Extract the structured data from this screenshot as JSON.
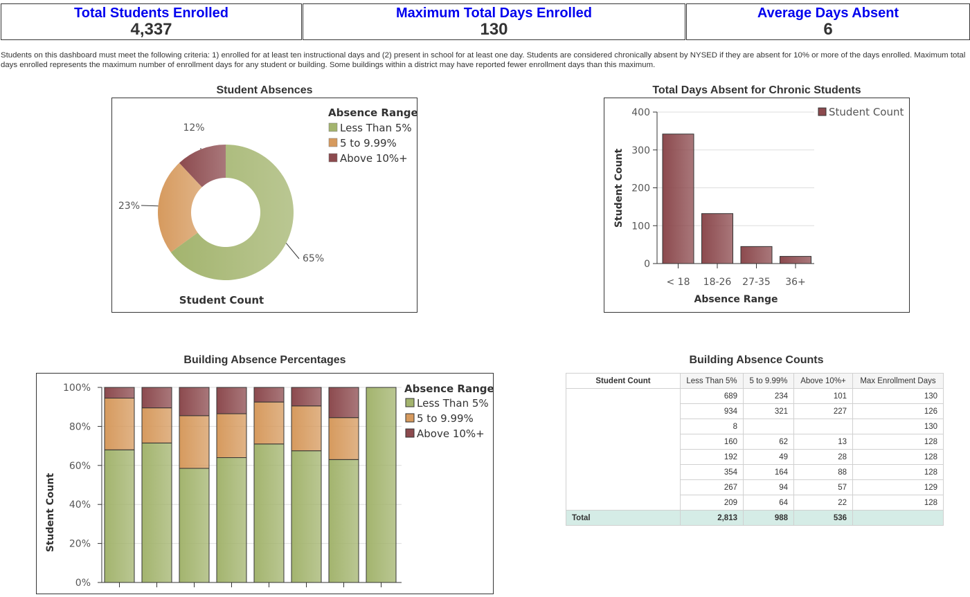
{
  "kpis": [
    {
      "label": "Total Students Enrolled",
      "value": "4,337"
    },
    {
      "label": "Maximum Total Days Enrolled",
      "value": "130"
    },
    {
      "label": "Average Days Absent",
      "value": "6"
    }
  ],
  "note": "Students on this dashboard must meet the following criteria: 1) enrolled for at least ten instructional days and (2) present in school for at least one day.  Students are considered chronically absent by NYSED if they are absent for 10% or more of the days enrolled.  Maximum total days enrolled represents the maximum number of enrollment days for any student or building.  Some buildings within a district may have reported fewer enrollment days than this maximum.",
  "chart_data": [
    {
      "type": "pie",
      "title": "Student Absences",
      "xlabel": "Student Count",
      "legend_title": "Absence Range",
      "legend_position": "top-right",
      "donut": true,
      "slices": [
        {
          "label": "Less Than 5%",
          "value": 65,
          "display": "65%",
          "color": "#a3b46e"
        },
        {
          "label": "5 to 9.99%",
          "value": 23,
          "display": "23%",
          "color": "#d69a5e"
        },
        {
          "label": "Above 10%+",
          "value": 12,
          "display": "12%",
          "color": "#8c4a4e"
        }
      ]
    },
    {
      "type": "bar",
      "title": "Total Days Absent for Chronic Students",
      "xlabel": "Absence Range",
      "ylabel": "Student Count",
      "categories": [
        "< 18",
        "18-26",
        "27-35",
        "36+"
      ],
      "series": [
        {
          "name": "Student Count",
          "values": [
            342,
            132,
            45,
            19
          ],
          "color": "#8c4a4e"
        }
      ],
      "ylim": [
        0,
        400
      ],
      "yticks": [
        0,
        100,
        200,
        300,
        400
      ],
      "grid": true,
      "legend_position": "top-right"
    },
    {
      "type": "bar",
      "stacked": true,
      "title": "Building Absence Percentages",
      "ylabel": "Student Count",
      "legend_title": "Absence Range",
      "legend_position": "top-right",
      "yticks": [
        "0%",
        "20%",
        "40%",
        "60%",
        "80%",
        "100%"
      ],
      "ylim": [
        0,
        100
      ],
      "grid": true,
      "categories": [
        "",
        "",
        "",
        "",
        "",
        "",
        "",
        ""
      ],
      "series": [
        {
          "name": "Less Than 5%",
          "values": [
            68,
            71.5,
            58.5,
            64,
            71,
            67.5,
            63,
            100
          ],
          "color": "#a3b46e"
        },
        {
          "name": "5 to 9.99%",
          "values": [
            26.5,
            18,
            27,
            22.5,
            21.5,
            23,
            21.5,
            0
          ],
          "color": "#d69a5e"
        },
        {
          "name": "Above 10%+",
          "values": [
            5.5,
            10.5,
            14.5,
            13.5,
            7.5,
            9.5,
            15.5,
            0
          ],
          "color": "#8c4a4e"
        }
      ]
    },
    {
      "type": "table",
      "title": "Building Absence Counts",
      "columns": [
        "Student Count",
        "Less Than 5%",
        "5 to 9.99%",
        "Above 10%+",
        "Max Enrollment Days"
      ],
      "rows": [
        [
          "689",
          "234",
          "101",
          "130"
        ],
        [
          "934",
          "321",
          "227",
          "126"
        ],
        [
          "8",
          "",
          "",
          "130"
        ],
        [
          "160",
          "62",
          "13",
          "128"
        ],
        [
          "192",
          "49",
          "28",
          "128"
        ],
        [
          "354",
          "164",
          "88",
          "128"
        ],
        [
          "267",
          "94",
          "57",
          "129"
        ],
        [
          "209",
          "64",
          "22",
          "128"
        ]
      ],
      "total": {
        "label": "Total",
        "values": [
          "2,813",
          "988",
          "536",
          ""
        ]
      }
    }
  ]
}
